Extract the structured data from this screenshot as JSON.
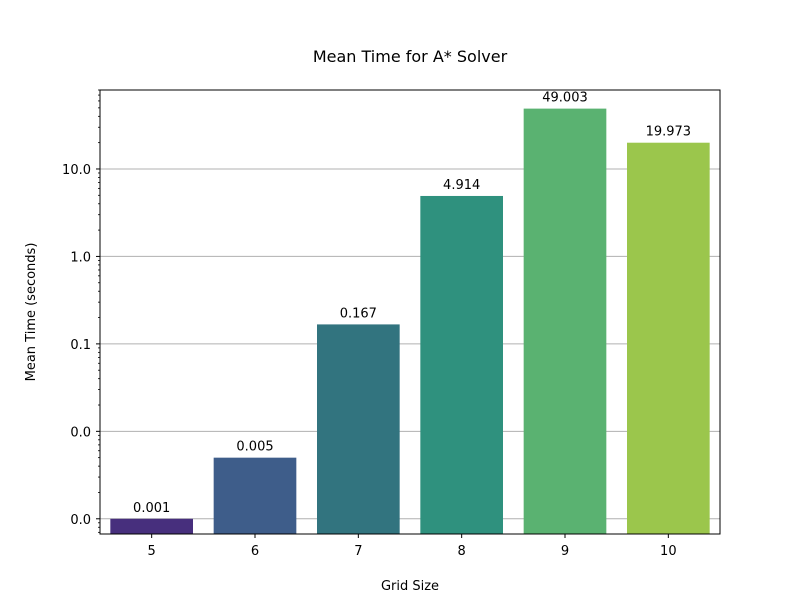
{
  "chart_data": {
    "type": "bar",
    "title": "Mean Time for A* Solver",
    "xlabel": "Grid Size",
    "ylabel": "Mean Time (seconds)",
    "yscale": "log",
    "ylim": [
      0.00067,
      80
    ],
    "categories": [
      "5",
      "6",
      "7",
      "8",
      "9",
      "10"
    ],
    "values": [
      0.001,
      0.005,
      0.167,
      4.914,
      49.003,
      19.973
    ],
    "data_labels": [
      "0.001",
      "0.005",
      "0.167",
      "4.914",
      "49.003",
      "19.973"
    ],
    "ytick_values": [
      0.001,
      0.01,
      0.1,
      1,
      10
    ],
    "ytick_labels": [
      "0.0",
      "0.0",
      "0.1",
      "1.0",
      "10.0"
    ],
    "colors": [
      "#472f7d",
      "#3e5d8a",
      "#32747f",
      "#2f917e",
      "#5ab271",
      "#9bc64c"
    ],
    "grid": "y",
    "legend": "none"
  }
}
